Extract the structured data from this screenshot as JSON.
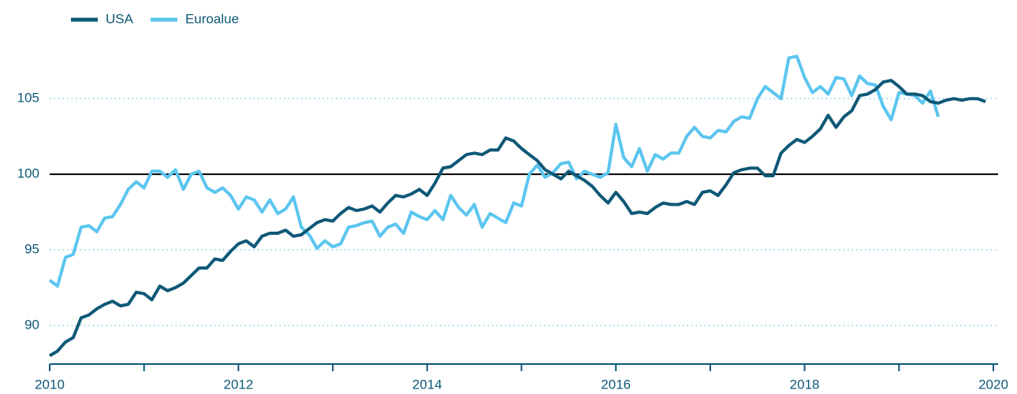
{
  "chart_data": {
    "type": "line",
    "x": [
      2010.0,
      2010.083,
      2010.167,
      2010.25,
      2010.333,
      2010.417,
      2010.5,
      2010.583,
      2010.667,
      2010.75,
      2010.833,
      2010.917,
      2011.0,
      2011.083,
      2011.167,
      2011.25,
      2011.333,
      2011.417,
      2011.5,
      2011.583,
      2011.667,
      2011.75,
      2011.833,
      2011.917,
      2012.0,
      2012.083,
      2012.167,
      2012.25,
      2012.333,
      2012.417,
      2012.5,
      2012.583,
      2012.667,
      2012.75,
      2012.833,
      2012.917,
      2013.0,
      2013.083,
      2013.167,
      2013.25,
      2013.333,
      2013.417,
      2013.5,
      2013.583,
      2013.667,
      2013.75,
      2013.833,
      2013.917,
      2014.0,
      2014.083,
      2014.167,
      2014.25,
      2014.333,
      2014.417,
      2014.5,
      2014.583,
      2014.667,
      2014.75,
      2014.833,
      2014.917,
      2015.0,
      2015.083,
      2015.167,
      2015.25,
      2015.333,
      2015.417,
      2015.5,
      2015.583,
      2015.667,
      2015.75,
      2015.833,
      2015.917,
      2016.0,
      2016.083,
      2016.167,
      2016.25,
      2016.333,
      2016.417,
      2016.5,
      2016.583,
      2016.667,
      2016.75,
      2016.833,
      2016.917,
      2017.0,
      2017.083,
      2017.167,
      2017.25,
      2017.333,
      2017.417,
      2017.5,
      2017.583,
      2017.667,
      2017.75,
      2017.833,
      2017.917,
      2018.0,
      2018.083,
      2018.167,
      2018.25,
      2018.333,
      2018.417,
      2018.5,
      2018.583,
      2018.667,
      2018.75,
      2018.833,
      2018.917,
      2019.0,
      2019.083,
      2019.167,
      2019.25,
      2019.333,
      2019.417,
      2019.5,
      2019.583,
      2019.667,
      2019.75,
      2019.833,
      2019.917
    ],
    "series": [
      {
        "name": "USA",
        "color": "#0e5877",
        "values": [
          88.0,
          88.3,
          88.9,
          89.2,
          90.5,
          90.7,
          91.1,
          91.4,
          91.6,
          91.3,
          91.4,
          92.2,
          92.1,
          91.7,
          92.6,
          92.3,
          92.5,
          92.8,
          93.3,
          93.8,
          93.8,
          94.4,
          94.3,
          94.9,
          95.4,
          95.6,
          95.2,
          95.9,
          96.1,
          96.1,
          96.3,
          95.9,
          96.0,
          96.4,
          96.8,
          97.0,
          96.9,
          97.4,
          97.8,
          97.6,
          97.7,
          97.9,
          97.5,
          98.1,
          98.6,
          98.5,
          98.7,
          99.0,
          98.6,
          99.4,
          100.4,
          100.5,
          100.9,
          101.3,
          101.4,
          101.3,
          101.6,
          101.6,
          102.4,
          102.2,
          101.7,
          101.3,
          100.9,
          100.3,
          100.0,
          99.7,
          100.2,
          99.9,
          99.6,
          99.2,
          98.6,
          98.1,
          98.8,
          98.2,
          97.4,
          97.5,
          97.4,
          97.8,
          98.1,
          98.0,
          98.0,
          98.2,
          98.0,
          98.8,
          98.9,
          98.6,
          99.3,
          100.1,
          100.3,
          100.4,
          100.4,
          99.9,
          99.9,
          101.4,
          101.9,
          102.3,
          102.1,
          102.5,
          103.0,
          103.9,
          103.1,
          103.8,
          104.2,
          105.2,
          105.3,
          105.6,
          106.1,
          106.2,
          105.8,
          105.3,
          105.3,
          105.2,
          104.8,
          104.7,
          104.9,
          105.0,
          104.9,
          105.0,
          105.0,
          104.8
        ]
      },
      {
        "name": "Euroalue",
        "color": "#5bc5ef",
        "values": [
          93.0,
          92.6,
          94.5,
          94.7,
          96.5,
          96.6,
          96.2,
          97.1,
          97.2,
          98.0,
          99.0,
          99.5,
          99.1,
          100.2,
          100.2,
          99.8,
          100.3,
          99.0,
          100.0,
          100.2,
          99.1,
          98.8,
          99.1,
          98.6,
          97.7,
          98.5,
          98.3,
          97.5,
          98.3,
          97.4,
          97.7,
          98.5,
          96.5,
          96.0,
          95.1,
          95.6,
          95.2,
          95.4,
          96.5,
          96.6,
          96.8,
          96.9,
          95.9,
          96.5,
          96.7,
          96.1,
          97.5,
          97.2,
          97.0,
          97.6,
          97.0,
          98.6,
          97.8,
          97.3,
          98.0,
          96.5,
          97.4,
          97.1,
          96.8,
          98.1,
          97.9,
          100.0,
          100.6,
          99.8,
          100.1,
          100.7,
          100.8,
          99.7,
          100.2,
          100.0,
          99.8,
          100.1,
          103.3,
          101.1,
          100.5,
          101.7,
          100.2,
          101.3,
          101.0,
          101.4,
          101.4,
          102.5,
          103.1,
          102.5,
          102.4,
          102.9,
          102.8,
          103.5,
          103.8,
          103.7,
          105.0,
          105.8,
          105.4,
          105.0,
          107.7,
          107.8,
          106.4,
          105.4,
          105.8,
          105.3,
          106.4,
          106.3,
          105.2,
          106.5,
          106.0,
          105.9,
          104.5,
          103.6,
          105.4,
          105.3,
          105.2,
          104.7,
          105.5,
          103.8,
          null,
          null,
          null,
          null,
          null,
          null
        ]
      }
    ],
    "xlim": [
      2010,
      2020
    ],
    "xticks": [
      2010,
      2012,
      2014,
      2016,
      2018,
      2020
    ],
    "xminor_ticks": [
      2011,
      2013,
      2015,
      2017,
      2019
    ],
    "ylim": [
      87.5,
      108.5
    ],
    "yticks": [
      90,
      95,
      100,
      105
    ],
    "baseline": 100,
    "grid": true,
    "legend": "top-left"
  }
}
